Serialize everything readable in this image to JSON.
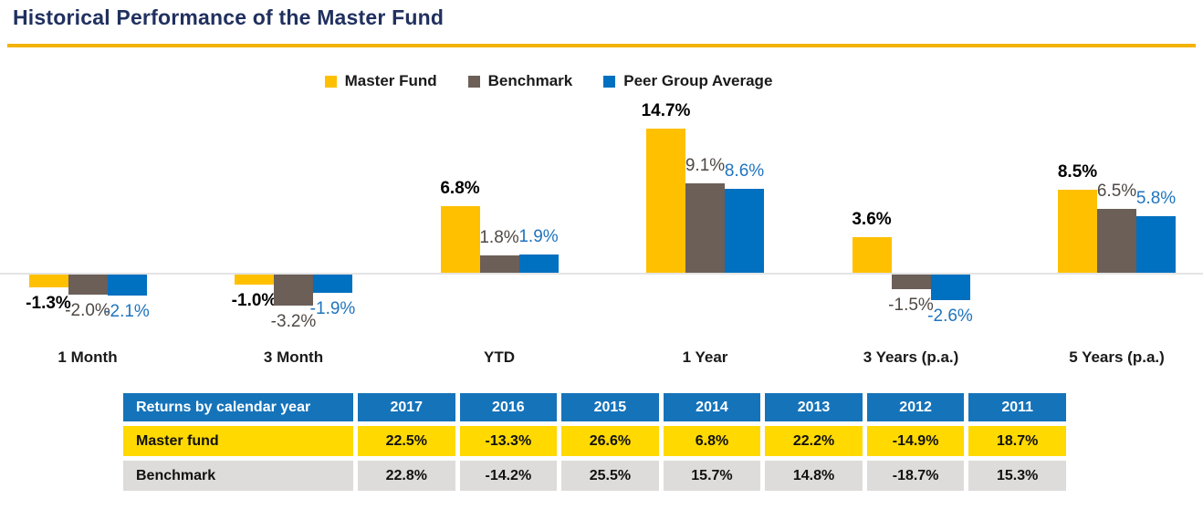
{
  "page": {
    "title": "Historical Performance of the Master Fund"
  },
  "colors": {
    "title_navy": "#20305F",
    "rule_gold": "#F3B300",
    "master_fund_bar": "#FFC000",
    "benchmark_bar": "#6B5F58",
    "peer_bar": "#0070C0",
    "benchmark_label_text": "#4F4843",
    "peer_label_text": "#1F74BE",
    "table_header_blue": "#1573BA",
    "table_master_row_yellow": "#FFD900",
    "table_benchmark_row_gray": "#DEDCDA",
    "baseline_gray": "#E4E4E4"
  },
  "chart_data": {
    "type": "bar",
    "title": "Historical Performance of the Master Fund",
    "categories": [
      "1 Month",
      "3 Month",
      "YTD",
      "1 Year",
      "3 Years (p.a.)",
      "5 Years (p.a.)"
    ],
    "series": [
      {
        "name": "Master Fund",
        "color": "#FFC000",
        "label_color": "#000000",
        "label_bold": true,
        "values": [
          -1.3,
          -1.0,
          6.8,
          14.7,
          3.6,
          8.5
        ]
      },
      {
        "name": "Benchmark",
        "color": "#6B5F58",
        "label_color": "#4F4843",
        "label_bold": false,
        "values": [
          -2.0,
          -3.2,
          1.8,
          9.1,
          -1.5,
          6.5
        ]
      },
      {
        "name": "Peer Group Average",
        "color": "#0070C0",
        "label_color": "#1F74BE",
        "label_bold": false,
        "values": [
          -2.1,
          -1.9,
          1.9,
          8.6,
          -2.6,
          5.8
        ]
      }
    ],
    "value_suffix": "%",
    "value_decimals": 1,
    "xlabel": "",
    "ylabel": "",
    "ylim": [
      -4,
      16
    ],
    "grid": false,
    "axis_line": "zero baseline only, light gray",
    "legend_position": "top-center",
    "data_labels": "outside end"
  },
  "table": {
    "header_label": "Returns by calendar year",
    "years": [
      "2017",
      "2016",
      "2015",
      "2014",
      "2013",
      "2012",
      "2011"
    ],
    "rows": [
      {
        "label": "Master fund",
        "values": [
          "22.5%",
          "-13.3%",
          "26.6%",
          "6.8%",
          "22.2%",
          "-14.9%",
          "18.7%"
        ]
      },
      {
        "label": "Benchmark",
        "values": [
          "22.8%",
          "-14.2%",
          "25.5%",
          "15.7%",
          "14.8%",
          "-18.7%",
          "15.3%"
        ]
      }
    ]
  }
}
